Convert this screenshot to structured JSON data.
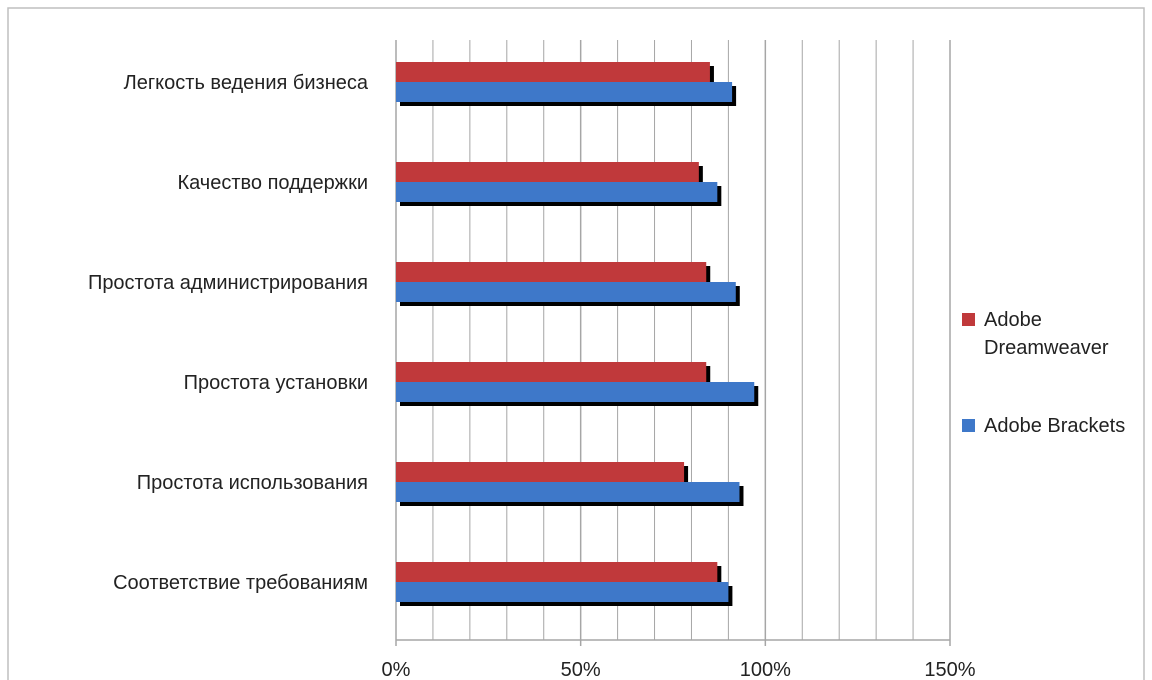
{
  "colors": {
    "Adobe Dreamweaver": "#c0393b",
    "Adobe Brackets": "#3e78c9",
    "shadow": "#000000",
    "grid": "#a6a6a6"
  },
  "chart_data": {
    "type": "bar",
    "orientation": "horizontal",
    "categories": [
      "Легкость ведения бизнеса",
      "Качество поддержки",
      "Простота администрирования",
      "Простота установки",
      "Простота использования",
      "Соответствие требованиям"
    ],
    "series": [
      {
        "name": "Adobe Dreamweaver",
        "values": [
          85,
          82,
          84,
          84,
          78,
          87
        ]
      },
      {
        "name": "Adobe Brackets",
        "values": [
          91,
          87,
          92,
          97,
          93,
          90
        ]
      }
    ],
    "xlim": [
      0,
      150
    ],
    "xticks": [
      0,
      50,
      100,
      150
    ],
    "xtick_labels": [
      "0%",
      "50%",
      "100%",
      "150%"
    ],
    "grid": true,
    "legend_position": "right",
    "legend": [
      "Adobe Dreamweaver",
      "Adobe Brackets"
    ]
  }
}
